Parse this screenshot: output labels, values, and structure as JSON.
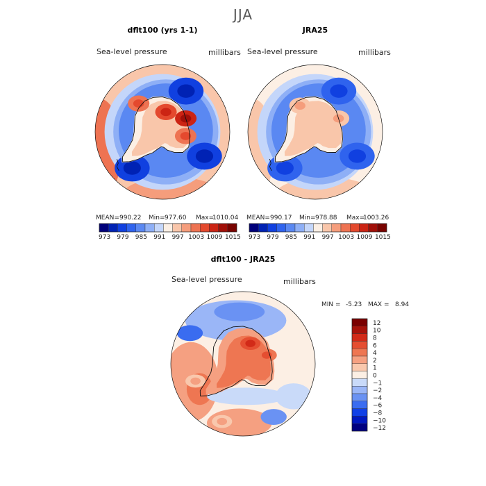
{
  "title": "JJA",
  "units": "millibars",
  "variable": "Sea-level pressure",
  "palette": {
    "abs": [
      "#00007a",
      "#0022b4",
      "#1040e0",
      "#2f63ee",
      "#5a88f2",
      "#8eaff6",
      "#c4d6fa",
      "#fcefe4",
      "#f9c6aa",
      "#f59d7c",
      "#ee7352",
      "#e4492e",
      "#cc2414",
      "#a10f08",
      "#780300"
    ],
    "diff": [
      "#000080",
      "#0018c0",
      "#1040e6",
      "#3a6cf0",
      "#6a92f3",
      "#9ab6f7",
      "#c9daf9",
      "#fcefe4",
      "#f9c8ad",
      "#f5a081",
      "#ee7652",
      "#e54e31",
      "#d22a18",
      "#a7120a",
      "#7a0000"
    ]
  },
  "chart_data": [
    {
      "type": "heatmap",
      "panel": "left",
      "title": "dflt100 (yrs 1-1)",
      "variable": "Sea-level pressure",
      "units": "millibars",
      "stats": {
        "mean": "990.22",
        "min": "977.60",
        "max": "1010.04"
      },
      "stats_text": {
        "mean_label": "MEAN=",
        "min_label": "Min=",
        "max_label": "Max="
      },
      "colorbar": {
        "tick_labels": [
          "973",
          "979",
          "985",
          "991",
          "997",
          "1003",
          "1009",
          "1015"
        ],
        "levels": 15
      },
      "field": {
        "ocean_ring_level": 5,
        "outer_level": 8,
        "west_edge_level": 10,
        "high_cells": [
          {
            "lon": 320,
            "lat_frac": 0.55,
            "level": 11
          },
          {
            "lon": 10,
            "lat_frac": 0.3,
            "level": 12
          },
          {
            "lon": 60,
            "lat_frac": 0.4,
            "level": 13
          },
          {
            "lon": 100,
            "lat_frac": 0.35,
            "level": 11
          }
        ],
        "low_cells": [
          {
            "lon": 220,
            "lat_frac": 0.7,
            "level": 2
          },
          {
            "lon": 30,
            "lat_frac": 0.7,
            "level": 2
          },
          {
            "lon": 120,
            "lat_frac": 0.72,
            "level": 2
          }
        ]
      }
    },
    {
      "type": "heatmap",
      "panel": "right",
      "title": "JRA25",
      "variable": "Sea-level pressure",
      "units": "millibars",
      "stats": {
        "mean": "990.17",
        "min": "978.88",
        "max": "1003.26"
      },
      "stats_text": {
        "mean_label": "MEAN=",
        "min_label": "Min=",
        "max_label": "Max="
      },
      "colorbar": {
        "tick_labels": [
          "973",
          "979",
          "985",
          "991",
          "997",
          "1003",
          "1009",
          "1015"
        ],
        "levels": 15
      },
      "field": {
        "ocean_ring_level": 5,
        "outer_level": 7,
        "west_edge_level": 8,
        "high_cells": [
          {
            "lon": 330,
            "lat_frac": 0.45,
            "level": 9
          },
          {
            "lon": 60,
            "lat_frac": 0.4,
            "level": 9
          }
        ],
        "low_cells": [
          {
            "lon": 220,
            "lat_frac": 0.7,
            "level": 3
          },
          {
            "lon": 30,
            "lat_frac": 0.7,
            "level": 3
          },
          {
            "lon": 120,
            "lat_frac": 0.72,
            "level": 3
          }
        ]
      }
    },
    {
      "type": "heatmap",
      "panel": "difference",
      "title": "dflt100 - JRA25",
      "variable": "Sea-level pressure",
      "units": "millibars",
      "stats": {
        "min": "-5.23",
        "max": "8.94"
      },
      "stats_text": {
        "min_label": "MIN =",
        "max_label": "MAX ="
      },
      "colorbar": {
        "tick_labels": [
          "12",
          "10",
          "8",
          "6",
          "4",
          "2",
          "1",
          "0",
          "−1",
          "−2",
          "−4",
          "−6",
          "−8",
          "−10",
          "−12"
        ],
        "levels": 15
      },
      "field": {
        "base_level": 7,
        "positive_cells": [
          {
            "lon": 20,
            "lat_frac": 0.3,
            "level": 12
          },
          {
            "lon": 70,
            "lat_frac": 0.35,
            "level": 11
          },
          {
            "lon": 200,
            "lat_frac": 0.85,
            "level": 9
          },
          {
            "lon": 250,
            "lat_frac": 0.7,
            "level": 9
          }
        ],
        "negative_cells": [
          {
            "lon": 300,
            "lat_frac": 0.85,
            "level": 3
          },
          {
            "lon": 150,
            "lat_frac": 0.85,
            "level": 4
          }
        ]
      }
    }
  ]
}
